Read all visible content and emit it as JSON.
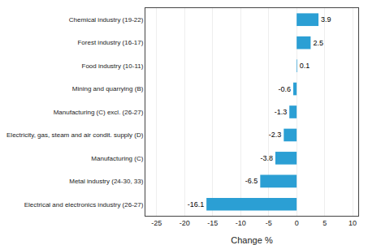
{
  "chart_data": {
    "type": "bar",
    "orientation": "horizontal",
    "categories": [
      "Electrical and electronics industry (26-27)",
      "Metal industry (24-30, 33)",
      "Manufacturing (C)",
      "Electricity, gas, steam and air condit. supply (D)",
      "Manufacturing (C) excl. (26-27)",
      "Mining and quarrying (B)",
      "Food industry (10-11)",
      "Forest industry (16-17)",
      "Chemical industry (19-22)"
    ],
    "values": [
      -16.1,
      -6.5,
      -3.8,
      -2.3,
      -1.3,
      -0.6,
      0.1,
      2.5,
      3.9
    ],
    "color": "#2b9fd4",
    "xlabel": "Change %",
    "xlim": [
      -27,
      11
    ],
    "xticks": [
      -25,
      -20,
      -15,
      -10,
      -5,
      0,
      5,
      10
    ],
    "grid": true,
    "data_labels": true
  }
}
